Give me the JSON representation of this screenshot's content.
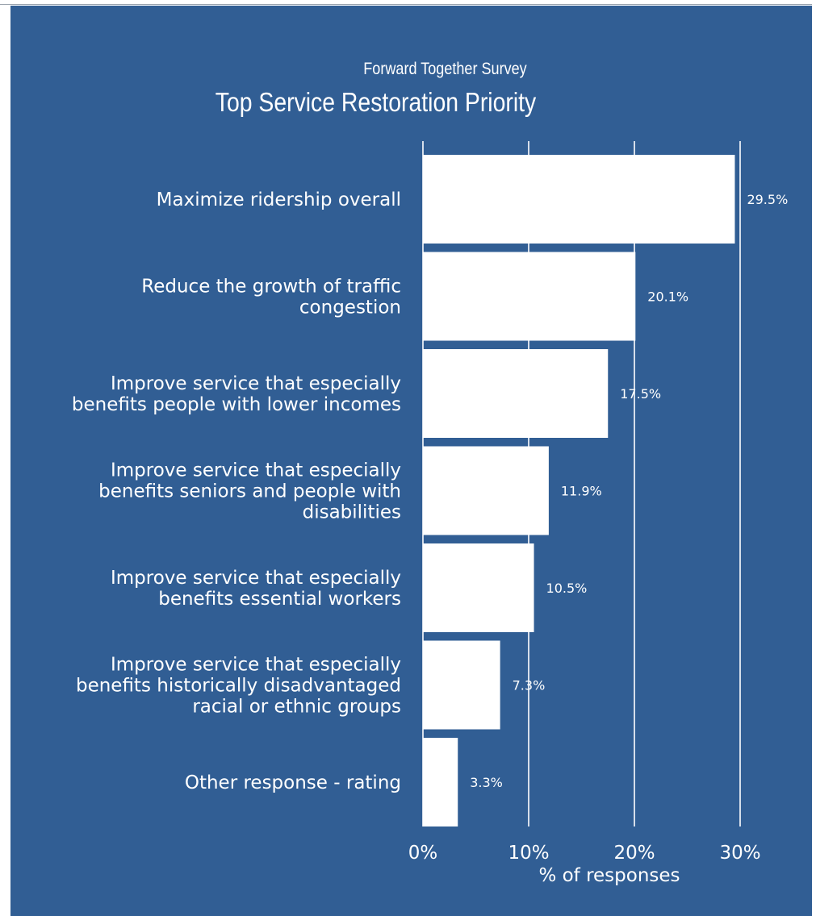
{
  "chart_data": {
    "type": "bar",
    "orientation": "horizontal",
    "subtitle": "Forward Together Survey",
    "title": "Top Service Restoration Priority",
    "xlabel": "% of responses",
    "ylabel": "",
    "xlim": [
      0,
      30
    ],
    "xticks": [
      "0%",
      "10%",
      "20%",
      "30%"
    ],
    "grid": true,
    "categories": [
      [
        "Maximize ridership overall"
      ],
      [
        "Reduce the growth of traffic",
        "congestion"
      ],
      [
        "Improve service that especially",
        "benefits people with lower incomes"
      ],
      [
        "Improve service that especially",
        "benefits seniors and people with",
        "disabilities"
      ],
      [
        "Improve service that especially",
        "benefits essential workers"
      ],
      [
        "Improve service that especially",
        "benefits historically disadvantaged",
        "racial or ethnic groups"
      ],
      [
        "Other response - rating"
      ]
    ],
    "values": [
      29.5,
      20.1,
      17.5,
      11.9,
      10.5,
      7.3,
      3.3
    ],
    "data_labels": [
      "29.5%",
      "20.1%",
      "17.5%",
      "11.9%",
      "10.5%",
      "7.3%",
      "3.3%"
    ]
  },
  "colors": {
    "background": "#315e94",
    "bar": "#ffffff",
    "text": "#ffffff",
    "grid": "#ffffff"
  }
}
